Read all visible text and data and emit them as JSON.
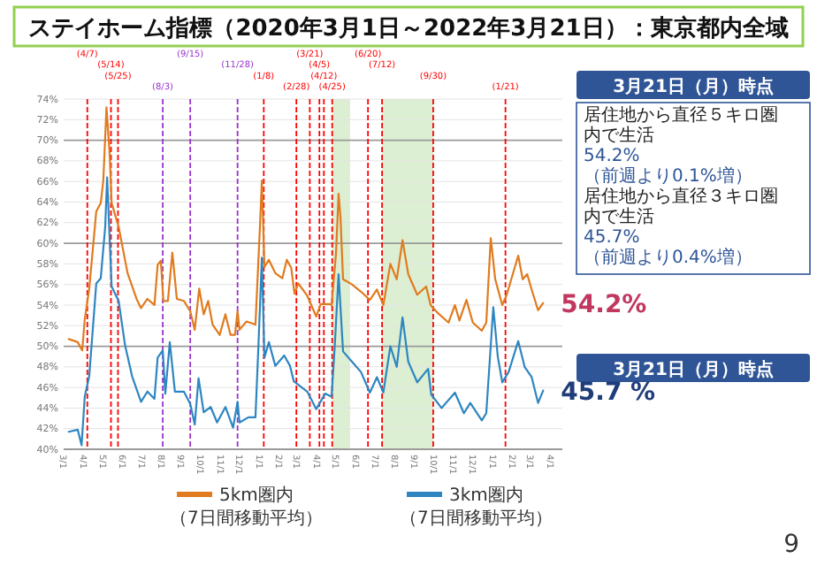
{
  "chart_data": {
    "type": "line",
    "title": "ステイホーム指標（2020年3月1日～2022年3月21日）：東京都内全域",
    "xlim": [
      "2020-03-01",
      "2022-04-20"
    ],
    "ylim": [
      40,
      74
    ],
    "yticks": [
      {
        "value": 40,
        "label": "40%"
      },
      {
        "value": 42,
        "label": "42%"
      },
      {
        "value": 44,
        "label": "44%"
      },
      {
        "value": 46,
        "label": "46%"
      },
      {
        "value": 48,
        "label": "48%"
      },
      {
        "value": 50,
        "label": "50%"
      },
      {
        "value": 52,
        "label": "52%"
      },
      {
        "value": 54,
        "label": "54%"
      },
      {
        "value": 56,
        "label": "56%"
      },
      {
        "value": 58,
        "label": "58%"
      },
      {
        "value": 60,
        "label": "60%"
      },
      {
        "value": 62,
        "label": "62%"
      },
      {
        "value": 64,
        "label": "64%"
      },
      {
        "value": 66,
        "label": "66%"
      },
      {
        "value": 68,
        "label": "68%"
      },
      {
        "value": 70,
        "label": "70%"
      },
      {
        "value": 72,
        "label": "72%"
      },
      {
        "value": 74,
        "label": "74%"
      }
    ],
    "xticks": [
      {
        "value": "2020-03-01",
        "label": "3/1"
      },
      {
        "value": "2020-04-01",
        "label": "4/1"
      },
      {
        "value": "2020-05-01",
        "label": "5/1"
      },
      {
        "value": "2020-06-01",
        "label": "6/1"
      },
      {
        "value": "2020-07-01",
        "label": "7/1"
      },
      {
        "value": "2020-08-01",
        "label": "8/1"
      },
      {
        "value": "2020-09-01",
        "label": "9/1"
      },
      {
        "value": "2020-10-01",
        "label": "10/1"
      },
      {
        "value": "2020-11-01",
        "label": "11/1"
      },
      {
        "value": "2020-12-01",
        "label": "12/1"
      },
      {
        "value": "2021-01-01",
        "label": "1/1"
      },
      {
        "value": "2021-02-01",
        "label": "2/1"
      },
      {
        "value": "2021-03-01",
        "label": "3/1"
      },
      {
        "value": "2021-04-01",
        "label": "4/1"
      },
      {
        "value": "2021-05-01",
        "label": "5/1"
      },
      {
        "value": "2021-06-01",
        "label": "6/1"
      },
      {
        "value": "2021-07-01",
        "label": "7/1"
      },
      {
        "value": "2021-08-01",
        "label": "8/1"
      },
      {
        "value": "2021-09-01",
        "label": "9/1"
      },
      {
        "value": "2021-10-01",
        "label": "10/1"
      },
      {
        "value": "2021-11-01",
        "label": "11/1"
      },
      {
        "value": "2021-12-01",
        "label": "12/1"
      },
      {
        "value": "2022-01-01",
        "label": "1/1"
      },
      {
        "value": "2022-02-01",
        "label": "2/1"
      },
      {
        "value": "2022-03-01",
        "label": "3/1"
      },
      {
        "value": "2022-04-01",
        "label": "4/1"
      }
    ],
    "grid": "y",
    "legend": "bottom",
    "line_style": "solid",
    "marker": "none",
    "series": [
      {
        "name": "5km圏内（7日間移動平均）",
        "color": "#e07b1f",
        "x": [
          "2020-03-09",
          "2020-03-23",
          "2020-03-30",
          "2020-04-03",
          "2020-04-10",
          "2020-04-21",
          "2020-04-28",
          "2020-05-02",
          "2020-05-07",
          "2020-05-12",
          "2020-05-15",
          "2020-05-26",
          "2020-06-09",
          "2020-06-23",
          "2020-06-30",
          "2020-07-10",
          "2020-07-21",
          "2020-07-26",
          "2020-07-31",
          "2020-08-04",
          "2020-08-11",
          "2020-08-18",
          "2020-08-25",
          "2020-09-05",
          "2020-09-15",
          "2020-09-22",
          "2020-09-29",
          "2020-10-06",
          "2020-10-13",
          "2020-10-20",
          "2020-10-31",
          "2020-11-09",
          "2020-11-17",
          "2020-11-24",
          "2020-11-28",
          "2020-12-01",
          "2020-12-12",
          "2020-12-26",
          "2021-01-02",
          "2021-01-05",
          "2021-01-09",
          "2021-01-16",
          "2021-01-26",
          "2021-02-06",
          "2021-02-13",
          "2021-02-20",
          "2021-02-25",
          "2021-03-03",
          "2021-03-17",
          "2021-03-31",
          "2021-04-07",
          "2021-04-21",
          "2021-04-24",
          "2021-05-01",
          "2021-05-05",
          "2021-05-08",
          "2021-05-12",
          "2021-05-26",
          "2021-06-09",
          "2021-06-23",
          "2021-07-04",
          "2021-07-14",
          "2021-07-25",
          "2021-08-04",
          "2021-08-13",
          "2021-08-22",
          "2021-09-05",
          "2021-09-19",
          "2021-09-26",
          "2021-10-06",
          "2021-10-24",
          "2021-11-03",
          "2021-11-10",
          "2021-11-21",
          "2021-12-01",
          "2021-12-15",
          "2021-12-22",
          "2021-12-29",
          "2022-01-05",
          "2022-01-16",
          "2022-01-23",
          "2022-02-10",
          "2022-02-17",
          "2022-02-24",
          "2022-03-03",
          "2022-03-13",
          "2022-03-21"
        ],
        "values": [
          50.7,
          50.4,
          49.6,
          52.6,
          55.6,
          63.1,
          63.9,
          66.1,
          73.2,
          68.6,
          63.9,
          61.6,
          57.1,
          54.6,
          53.7,
          54.6,
          54,
          57.9,
          58.3,
          54.4,
          54.4,
          59.1,
          54.6,
          54.4,
          53.4,
          51.6,
          55.6,
          53.1,
          54.4,
          52.1,
          51.1,
          53.1,
          51.1,
          51.1,
          53.4,
          51.6,
          52.4,
          52.1,
          61.6,
          66.1,
          57.7,
          58.4,
          57.1,
          56.6,
          58.4,
          57.6,
          55.1,
          56.1,
          54.9,
          52.9,
          54.1,
          54.1,
          54,
          59,
          64.8,
          62.5,
          56.5,
          56,
          55.3,
          54.5,
          55.5,
          54,
          58,
          56.5,
          60.3,
          57,
          55,
          55.8,
          54,
          53.3,
          52.3,
          54,
          52.5,
          54.5,
          52.3,
          51.5,
          52.3,
          60.5,
          56.5,
          54,
          55,
          58.8,
          56.5,
          57,
          55.5,
          53.5,
          54.2
        ]
      },
      {
        "name": "3km圏内（7日間移動平均）",
        "color": "#2e86c1",
        "x": [
          "2020-03-09",
          "2020-03-23",
          "2020-03-29",
          "2020-04-03",
          "2020-04-10",
          "2020-04-21",
          "2020-04-28",
          "2020-05-05",
          "2020-05-08",
          "2020-05-15",
          "2020-05-26",
          "2020-06-05",
          "2020-06-16",
          "2020-06-30",
          "2020-07-10",
          "2020-07-21",
          "2020-07-26",
          "2020-08-03",
          "2020-08-07",
          "2020-08-14",
          "2020-08-22",
          "2020-09-05",
          "2020-09-15",
          "2020-09-22",
          "2020-09-28",
          "2020-10-06",
          "2020-10-17",
          "2020-10-27",
          "2020-11-09",
          "2020-11-21",
          "2020-11-28",
          "2020-12-01",
          "2020-12-15",
          "2020-12-26",
          "2020-12-31",
          "2021-01-05",
          "2021-01-09",
          "2021-01-16",
          "2021-01-26",
          "2021-02-09",
          "2021-02-18",
          "2021-02-24",
          "2021-03-17",
          "2021-03-31",
          "2021-04-14",
          "2021-04-24",
          "2021-04-29",
          "2021-05-05",
          "2021-05-12",
          "2021-05-26",
          "2021-06-09",
          "2021-06-23",
          "2021-07-04",
          "2021-07-14",
          "2021-07-25",
          "2021-08-04",
          "2021-08-13",
          "2021-08-22",
          "2021-09-05",
          "2021-09-22",
          "2021-09-27",
          "2021-10-13",
          "2021-11-03",
          "2021-11-17",
          "2021-11-27",
          "2021-12-15",
          "2021-12-22",
          "2022-01-02",
          "2022-01-09",
          "2022-01-16",
          "2022-01-26",
          "2022-02-10",
          "2022-02-20",
          "2022-03-03",
          "2022-03-13",
          "2022-03-21"
        ],
        "values": [
          41.7,
          41.9,
          40.4,
          45.1,
          47.1,
          56.1,
          56.6,
          61.6,
          66.4,
          55.8,
          54.4,
          50.1,
          47.1,
          44.6,
          45.6,
          44.9,
          48.9,
          49.6,
          45.4,
          50.4,
          45.6,
          45.6,
          44.4,
          42.4,
          46.9,
          43.6,
          44.1,
          42.6,
          44.1,
          42.1,
          44.6,
          42.6,
          43.1,
          43.1,
          50.6,
          58.6,
          48.9,
          50.4,
          48.1,
          49.1,
          48.1,
          46.6,
          45.6,
          43.9,
          45.4,
          45.1,
          50,
          57,
          49.5,
          48.5,
          47.5,
          45.5,
          47,
          45.5,
          50,
          48,
          52.8,
          48.5,
          46.5,
          47.8,
          45.3,
          44,
          45.5,
          43.5,
          44.5,
          42.8,
          43.5,
          53.8,
          49,
          46.5,
          47.5,
          50.5,
          48,
          47,
          44.5,
          45.7
        ]
      }
    ],
    "ref_lines": [
      {
        "axis": "x",
        "value": "2020-04-07",
        "label": "(4/7)",
        "color": "#ff0000",
        "line_style": "dashed"
      },
      {
        "axis": "x",
        "value": "2020-05-14",
        "label": "(5/14)",
        "color": "#ff0000",
        "line_style": "dashed"
      },
      {
        "axis": "x",
        "value": "2020-05-25",
        "label": "(5/25)",
        "color": "#ff0000",
        "line_style": "dashed"
      },
      {
        "axis": "x",
        "value": "2020-08-03",
        "label": "(8/3)",
        "color": "#9933cc",
        "line_style": "dashed"
      },
      {
        "axis": "x",
        "value": "2020-09-15",
        "label": "(9/15)",
        "color": "#9933cc",
        "line_style": "dashed"
      },
      {
        "axis": "x",
        "value": "2020-11-28",
        "label": "(11/28)",
        "color": "#9933cc",
        "line_style": "dashed"
      },
      {
        "axis": "x",
        "value": "2021-01-08",
        "label": "(1/8)",
        "color": "#ff0000",
        "line_style": "dashed"
      },
      {
        "axis": "x",
        "value": "2021-02-28",
        "label": "(2/28)",
        "color": "#ff0000",
        "line_style": "dashed"
      },
      {
        "axis": "x",
        "value": "2021-03-21",
        "label": "(3/21)",
        "color": "#ff0000",
        "line_style": "dashed"
      },
      {
        "axis": "x",
        "value": "2021-04-05",
        "label": "(4/5)",
        "color": "#ff0000",
        "line_style": "dashed"
      },
      {
        "axis": "x",
        "value": "2021-04-12",
        "label": "(4/12)",
        "color": "#ff0000",
        "line_style": "dashed"
      },
      {
        "axis": "x",
        "value": "2021-04-25",
        "label": "(4/25)",
        "color": "#ff0000",
        "line_style": "dashed"
      },
      {
        "axis": "x",
        "value": "2021-06-20",
        "label": "(6/20)",
        "color": "#ff0000",
        "line_style": "dashed"
      },
      {
        "axis": "x",
        "value": "2021-07-12",
        "label": "(7/12)",
        "color": "#ff0000",
        "line_style": "dashed"
      },
      {
        "axis": "x",
        "value": "2021-09-30",
        "label": "(9/30)",
        "color": "#ff0000",
        "line_style": "dashed"
      },
      {
        "axis": "x",
        "value": "2022-01-21",
        "label": "(1/21)",
        "color": "#ff0000",
        "line_style": "dashed"
      }
    ],
    "bands": [
      {
        "axis": "x",
        "from": "2021-04-25",
        "to": "2021-05-23",
        "color": "#dcefd3"
      },
      {
        "axis": "x",
        "from": "2021-07-12",
        "to": "2021-09-30",
        "color": "#dcefd3"
      }
    ],
    "annotations": [
      "3月21日（月）時点",
      "居住地から直径５キロ圏内で生活",
      "54.2%（前週より0.1%増）",
      "居住地から直径３キロ圏内で生活",
      "45.7%（前週より0.4%増）",
      "3月21日（月）時点",
      {
        "text": "54.2%",
        "x": "2022-03-21",
        "y": 54.2
      },
      {
        "text": "45.7 %",
        "x": "2022-03-21",
        "y": 45.7
      },
      "9"
    ]
  }
}
